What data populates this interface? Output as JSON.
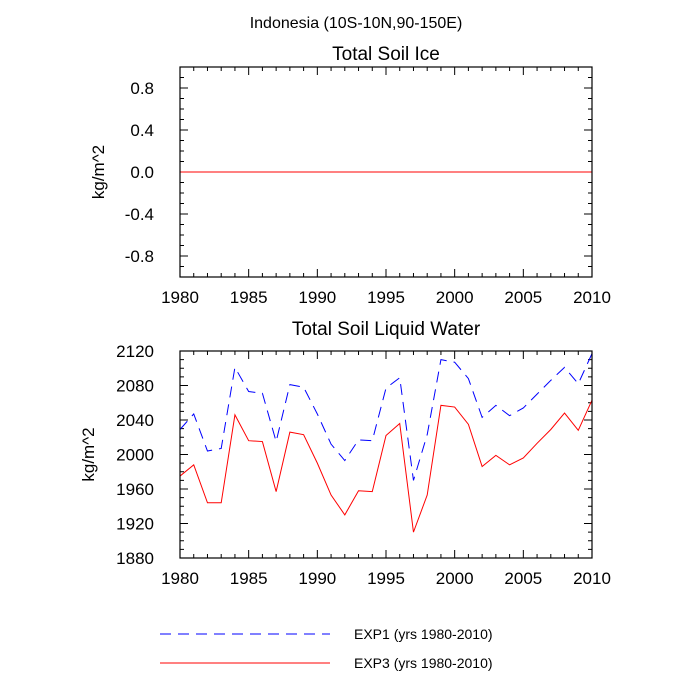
{
  "figure_title": "Indonesia (10S-10N,90-150E)",
  "legend": [
    {
      "name": "EXP1 (yrs 1980-2010)",
      "color": "#0000ff",
      "dash": true
    },
    {
      "name": "EXP3 (yrs 1980-2010)",
      "color": "#ff0000",
      "dash": false
    }
  ],
  "chart_data": [
    {
      "type": "line",
      "title": "Total Soil Ice",
      "xlabel": "",
      "ylabel": "kg/m^2",
      "xlim": [
        1980,
        2010
      ],
      "ylim": [
        -1.0,
        1.0
      ],
      "xticks": [
        1980,
        1985,
        1990,
        1995,
        2000,
        2005,
        2010
      ],
      "yticks": [
        -0.8,
        -0.4,
        0.0,
        0.4,
        0.8
      ],
      "ytick_labels": [
        "-0.8",
        "-0.4",
        "0.0",
        "0.4",
        "0.8"
      ],
      "x": [
        1980,
        1981,
        1982,
        1983,
        1984,
        1985,
        1986,
        1987,
        1988,
        1989,
        1990,
        1991,
        1992,
        1993,
        1994,
        1995,
        1996,
        1997,
        1998,
        1999,
        2000,
        2001,
        2002,
        2003,
        2004,
        2005,
        2006,
        2007,
        2008,
        2009,
        2010
      ],
      "series": [
        {
          "name": "EXP1 (yrs 1980-2010)",
          "color": "#0000ff",
          "dash": true,
          "values": [
            0,
            0,
            0,
            0,
            0,
            0,
            0,
            0,
            0,
            0,
            0,
            0,
            0,
            0,
            0,
            0,
            0,
            0,
            0,
            0,
            0,
            0,
            0,
            0,
            0,
            0,
            0,
            0,
            0,
            0,
            0
          ]
        },
        {
          "name": "EXP3 (yrs 1980-2010)",
          "color": "#ff0000",
          "dash": false,
          "values": [
            0,
            0,
            0,
            0,
            0,
            0,
            0,
            0,
            0,
            0,
            0,
            0,
            0,
            0,
            0,
            0,
            0,
            0,
            0,
            0,
            0,
            0,
            0,
            0,
            0,
            0,
            0,
            0,
            0,
            0,
            0
          ]
        }
      ]
    },
    {
      "type": "line",
      "title": "Total Soil Liquid Water",
      "xlabel": "",
      "ylabel": "kg/m^2",
      "xlim": [
        1980,
        2010
      ],
      "ylim": [
        1880,
        2120
      ],
      "xticks": [
        1980,
        1985,
        1990,
        1995,
        2000,
        2005,
        2010
      ],
      "yticks": [
        1880,
        1920,
        1960,
        2000,
        2040,
        2080,
        2120
      ],
      "ytick_labels": [
        "1880",
        "1920",
        "1960",
        "2000",
        "2040",
        "2080",
        "2120"
      ],
      "x": [
        1980,
        1981,
        1982,
        1983,
        1984,
        1985,
        1986,
        1987,
        1988,
        1989,
        1990,
        1991,
        1992,
        1993,
        1994,
        1995,
        1996,
        1997,
        1998,
        1999,
        2000,
        2001,
        2002,
        2003,
        2004,
        2005,
        2006,
        2007,
        2008,
        2009,
        2010
      ],
      "series": [
        {
          "name": "EXP1 (yrs 1980-2010)",
          "color": "#0000ff",
          "dash": true,
          "values": [
            2029,
            2047,
            2004,
            2007,
            2101,
            2073,
            2071,
            2015,
            2081,
            2078,
            2047,
            2012,
            1993,
            2017,
            2016,
            2077,
            2089,
            1970,
            2023,
            2110,
            2107,
            2088,
            2043,
            2057,
            2045,
            2054,
            2070,
            2086,
            2101,
            2082,
            2117
          ]
        },
        {
          "name": "EXP3 (yrs 1980-2010)",
          "color": "#ff0000",
          "dash": false,
          "values": [
            1975,
            1988,
            1944,
            1944,
            2046,
            2016,
            2015,
            1957,
            2026,
            2023,
            1990,
            1953,
            1930,
            1958,
            1957,
            2022,
            2036,
            1910,
            1953,
            2057,
            2055,
            2035,
            1986,
            1999,
            1988,
            1996,
            2013,
            2029,
            2048,
            2028,
            2063
          ]
        }
      ]
    }
  ]
}
